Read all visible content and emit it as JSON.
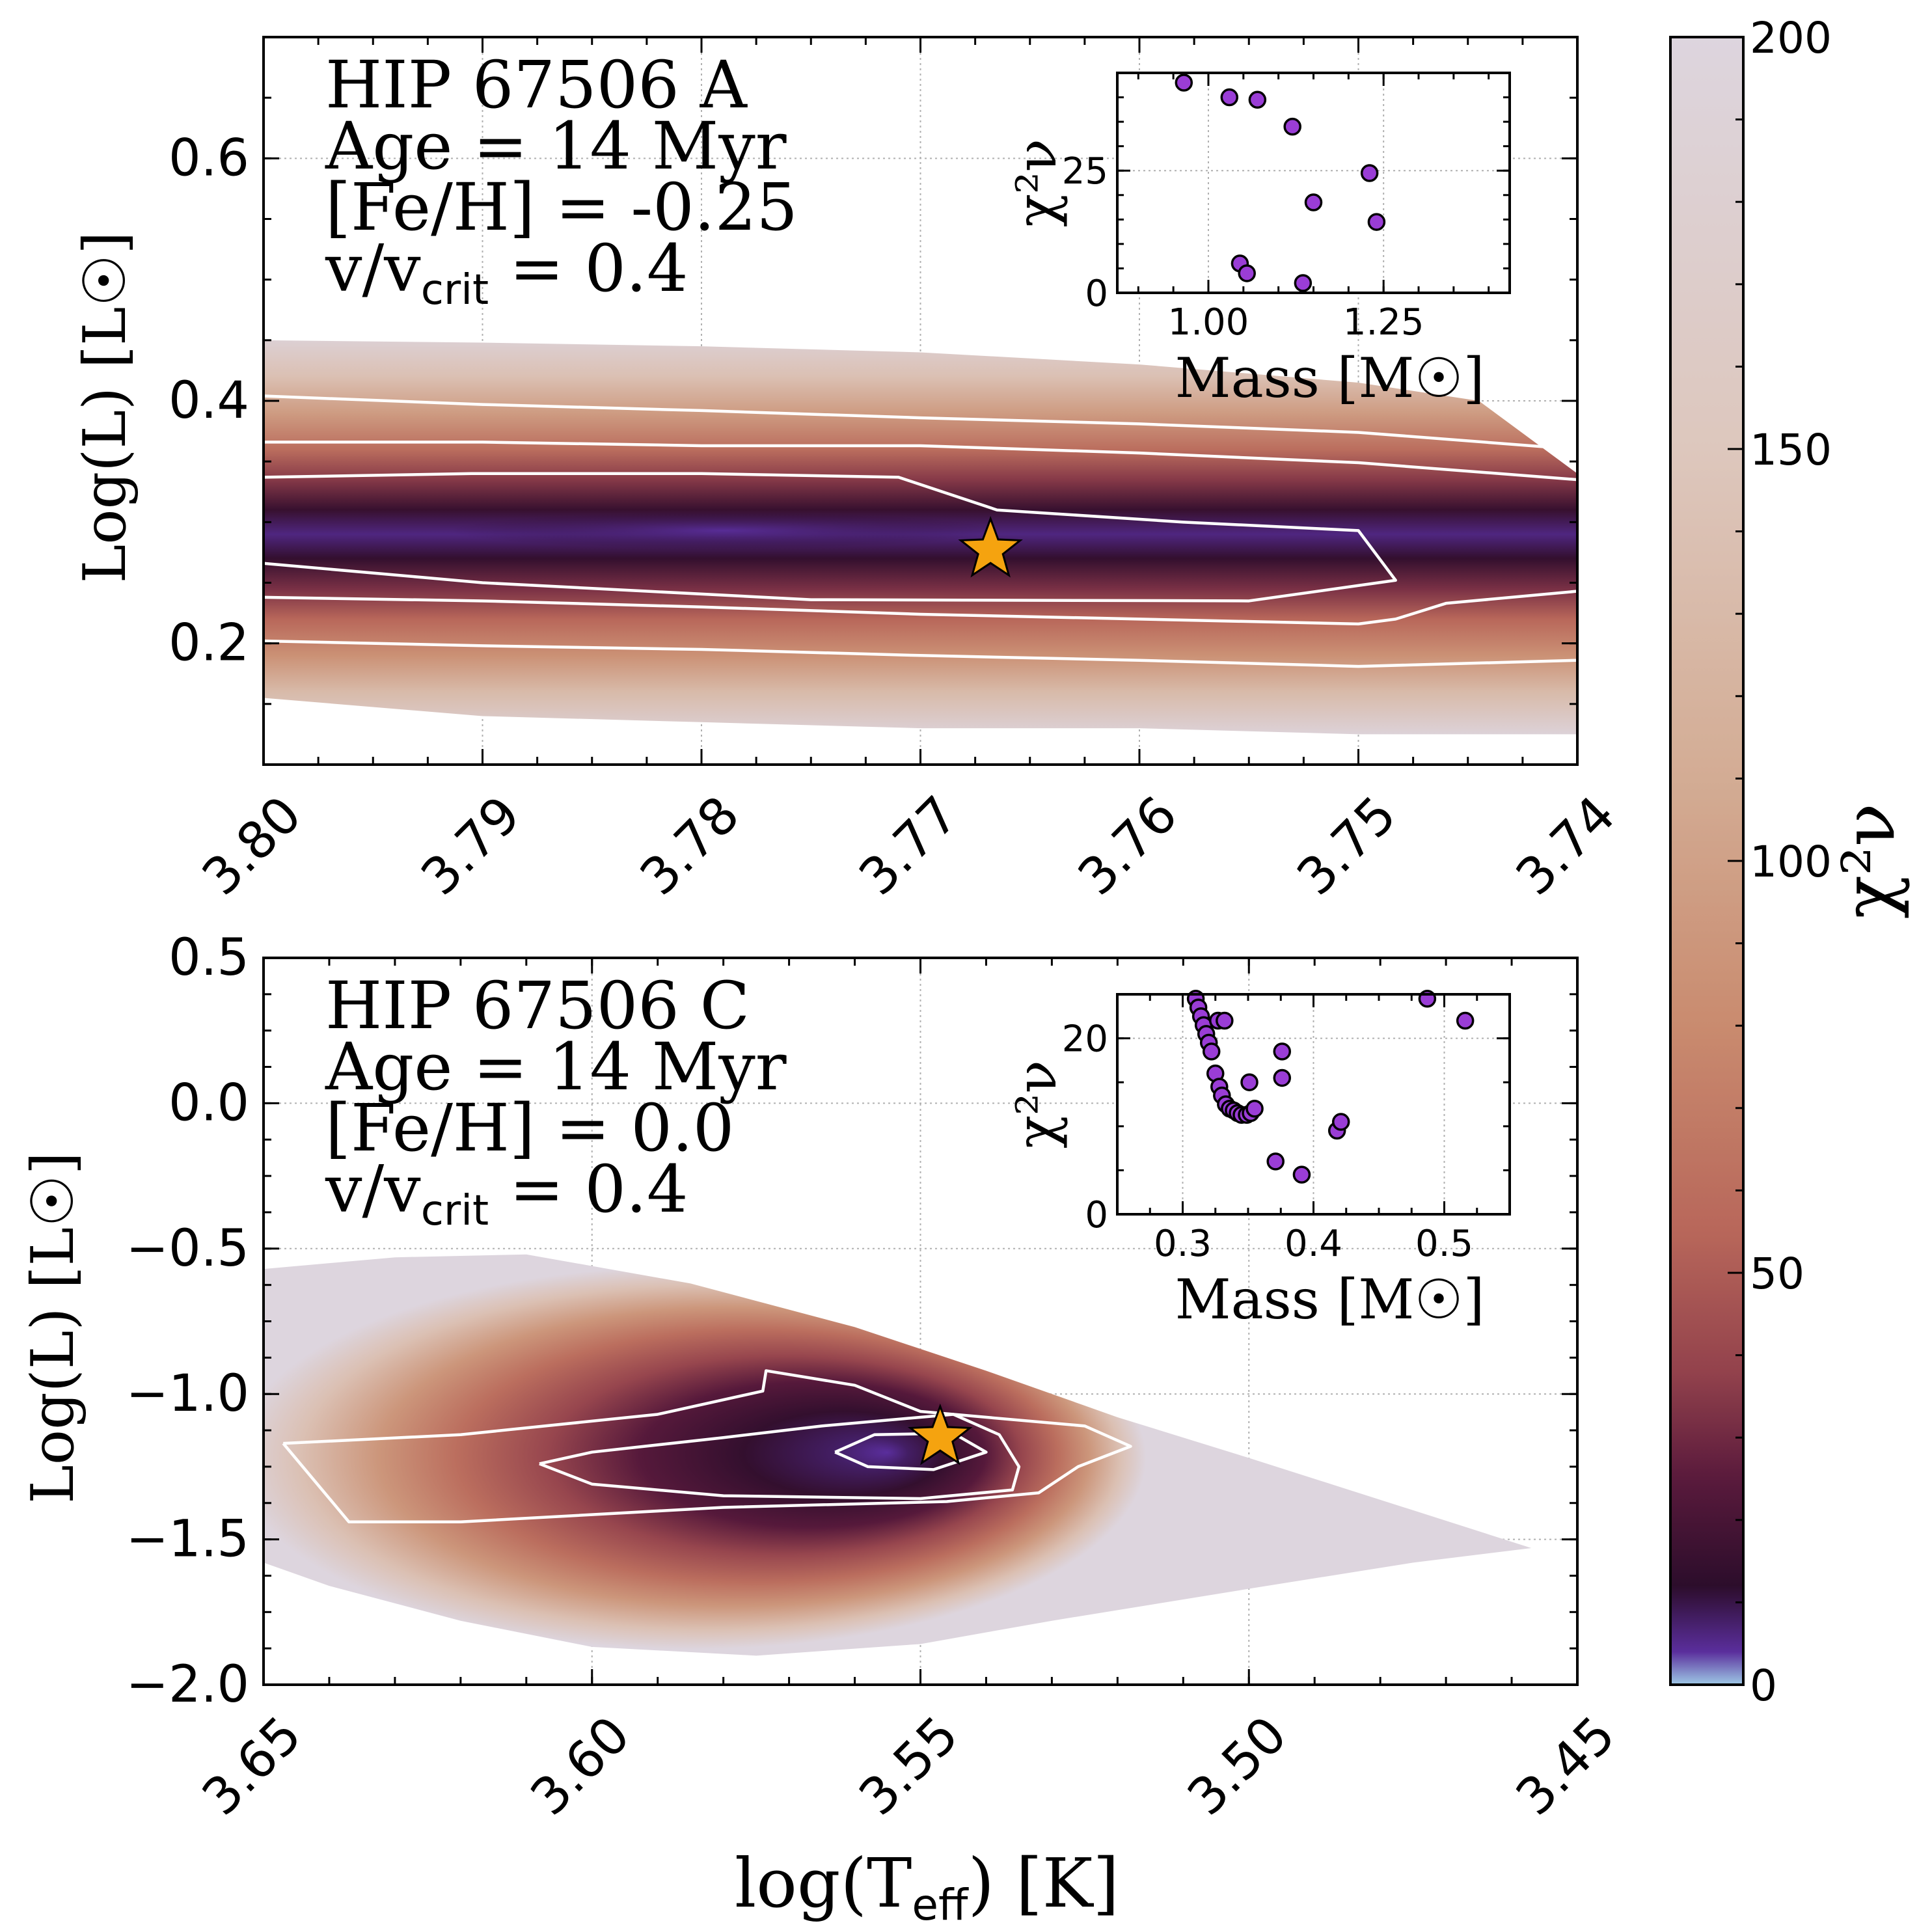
{
  "chart_data": [
    {
      "id": "panel-a",
      "type": "heatmap",
      "title": "",
      "annotations": {
        "name": "HIP 67506 A",
        "age": "Age = 14 Myr",
        "feh": "[Fe/H] = -0.25",
        "rot_prefix": "v/v",
        "rot_sub": "crit",
        "rot_suffix": " = 0.4"
      },
      "xlabel": "",
      "ylabel": "Log(L) [L☉]",
      "xlim": [
        3.8,
        3.74
      ],
      "ylim": [
        0.1,
        0.7
      ],
      "xticks": [
        3.8,
        3.79,
        3.78,
        3.77,
        3.76,
        3.75,
        3.74
      ],
      "xtick_labels": [
        "3.80",
        "3.79",
        "3.78",
        "3.77",
        "3.76",
        "3.75",
        "3.74"
      ],
      "yticks": [
        0.2,
        0.4,
        0.6
      ],
      "ytick_labels": [
        "0.2",
        "0.4",
        "0.6"
      ],
      "envelope": {
        "top": [
          [
            3.8,
            0.45
          ],
          [
            3.79,
            0.448
          ],
          [
            3.78,
            0.445
          ],
          [
            3.77,
            0.44
          ],
          [
            3.76,
            0.43
          ],
          [
            3.75,
            0.415
          ],
          [
            3.7445,
            0.4
          ],
          [
            3.74,
            0.34
          ]
        ],
        "bottom": [
          [
            3.74,
            0.125
          ],
          [
            3.75,
            0.125
          ],
          [
            3.76,
            0.13
          ],
          [
            3.77,
            0.13
          ],
          [
            3.78,
            0.135
          ],
          [
            3.79,
            0.14
          ],
          [
            3.8,
            0.155
          ]
        ]
      },
      "ridge": {
        "x": [
          3.8,
          3.74
        ],
        "y": [
          0.3,
          0.28
        ],
        "width_pos": 0.17
      },
      "contours": [
        [
          [
            3.8,
            0.404
          ],
          [
            3.79,
            0.397
          ],
          [
            3.78,
            0.392
          ],
          [
            3.77,
            0.386
          ],
          [
            3.76,
            0.381
          ],
          [
            3.75,
            0.374
          ],
          [
            3.74,
            0.36
          ]
        ],
        [
          [
            3.8,
            0.366
          ],
          [
            3.79,
            0.366
          ],
          [
            3.78,
            0.363
          ],
          [
            3.77,
            0.363
          ],
          [
            3.76,
            0.357
          ],
          [
            3.75,
            0.349
          ],
          [
            3.74,
            0.335
          ]
        ],
        [
          [
            3.8,
            0.337
          ],
          [
            3.7905,
            0.34
          ],
          [
            3.78,
            0.34
          ],
          [
            3.771,
            0.337
          ],
          [
            3.7665,
            0.31
          ],
          [
            3.758,
            0.3
          ],
          [
            3.75,
            0.293
          ],
          [
            3.7483,
            0.252
          ],
          [
            3.755,
            0.235
          ],
          [
            3.775,
            0.236
          ],
          [
            3.79,
            0.25
          ],
          [
            3.8,
            0.266
          ]
        ],
        [
          [
            3.8,
            0.238
          ],
          [
            3.79,
            0.235
          ],
          [
            3.78,
            0.23
          ],
          [
            3.77,
            0.224
          ],
          [
            3.76,
            0.22
          ],
          [
            3.75,
            0.216
          ],
          [
            3.7483,
            0.22
          ],
          [
            3.746,
            0.233
          ],
          [
            3.74,
            0.243
          ]
        ],
        [
          [
            3.8,
            0.202
          ],
          [
            3.79,
            0.198
          ],
          [
            3.78,
            0.195
          ],
          [
            3.77,
            0.19
          ],
          [
            3.76,
            0.186
          ],
          [
            3.75,
            0.181
          ],
          [
            3.74,
            0.186
          ]
        ]
      ],
      "best_fit": {
        "x": 3.7668,
        "y": 0.277
      },
      "inset": {
        "type": "scatter",
        "xlabel": "Mass [M☉]",
        "ylabel": "χ²ν",
        "xlim": [
          0.87,
          1.43
        ],
        "ylim": [
          0,
          45
        ],
        "xticks": [
          1.0,
          1.25
        ],
        "xtick_labels": [
          "1.00",
          "1.25"
        ],
        "yticks": [
          0,
          25
        ],
        "ytick_labels": [
          "0",
          "25"
        ],
        "x": [
          0.965,
          1.03,
          1.07,
          1.12,
          1.23,
          1.15,
          1.24,
          1.045,
          1.055,
          1.135
        ],
        "y": [
          43,
          40,
          39.5,
          34,
          24.5,
          18.5,
          14.5,
          6,
          4,
          2
        ]
      }
    },
    {
      "id": "panel-c",
      "type": "heatmap",
      "title": "",
      "annotations": {
        "name": "HIP 67506 C",
        "age": "Age = 14 Myr",
        "feh": "[Fe/H] = 0.0",
        "rot_prefix": "v/v",
        "rot_sub": "crit",
        "rot_suffix": " = 0.4"
      },
      "xlabel": "log(T_eff) [K]",
      "xlabel_parts": {
        "pre": "log(T",
        "sub": "eff",
        "post": ") [K]"
      },
      "ylabel": "Log(L) [L☉]",
      "xlim": [
        3.65,
        3.45
      ],
      "ylim": [
        -2.0,
        0.5
      ],
      "xticks": [
        3.65,
        3.6,
        3.55,
        3.5,
        3.45
      ],
      "xtick_labels": [
        "3.65",
        "3.60",
        "3.55",
        "3.50",
        "3.45"
      ],
      "yticks": [
        -2.0,
        -1.5,
        -1.0,
        -0.5,
        0.0,
        0.5
      ],
      "ytick_labels": [
        "−2.0",
        "−1.5",
        "−1.0",
        "−0.5",
        "0.0",
        "0.5"
      ],
      "envelope": [
        [
          3.65,
          -0.57
        ],
        [
          3.63,
          -0.53
        ],
        [
          3.61,
          -0.52
        ],
        [
          3.585,
          -0.62
        ],
        [
          3.56,
          -0.77
        ],
        [
          3.54,
          -0.92
        ],
        [
          3.52,
          -1.08
        ],
        [
          3.5,
          -1.22
        ],
        [
          3.475,
          -1.4
        ],
        [
          3.457,
          -1.53
        ],
        [
          3.475,
          -1.58
        ],
        [
          3.5,
          -1.67
        ],
        [
          3.53,
          -1.78
        ],
        [
          3.55,
          -1.86
        ],
        [
          3.575,
          -1.9
        ],
        [
          3.6,
          -1.87
        ],
        [
          3.62,
          -1.78
        ],
        [
          3.64,
          -1.66
        ],
        [
          3.65,
          -1.58
        ]
      ],
      "ridge": {
        "x": [
          3.6,
          3.53
        ],
        "y": [
          -1.21,
          -1.21
        ]
      },
      "contours": [
        [
          [
            3.647,
            -1.17
          ],
          [
            3.62,
            -1.14
          ],
          [
            3.59,
            -1.07
          ],
          [
            3.574,
            -0.99
          ],
          [
            3.5735,
            -0.92
          ],
          [
            3.56,
            -0.97
          ],
          [
            3.55,
            -1.06
          ],
          [
            3.525,
            -1.11
          ],
          [
            3.518,
            -1.18
          ],
          [
            3.526,
            -1.25
          ],
          [
            3.532,
            -1.34
          ],
          [
            3.546,
            -1.37
          ],
          [
            3.58,
            -1.39
          ],
          [
            3.62,
            -1.44
          ],
          [
            3.637,
            -1.44
          ],
          [
            3.647,
            -1.17
          ]
        ],
        [
          [
            3.608,
            -1.24
          ],
          [
            3.6,
            -1.2
          ],
          [
            3.58,
            -1.15
          ],
          [
            3.565,
            -1.11
          ],
          [
            3.545,
            -1.07
          ],
          [
            3.538,
            -1.14
          ],
          [
            3.535,
            -1.25
          ],
          [
            3.536,
            -1.33
          ],
          [
            3.55,
            -1.36
          ],
          [
            3.58,
            -1.35
          ],
          [
            3.6,
            -1.31
          ],
          [
            3.608,
            -1.24
          ]
        ],
        [
          [
            3.563,
            -1.2
          ],
          [
            3.557,
            -1.14
          ],
          [
            3.545,
            -1.135
          ],
          [
            3.54,
            -1.2
          ],
          [
            3.548,
            -1.26
          ],
          [
            3.558,
            -1.25
          ],
          [
            3.563,
            -1.2
          ]
        ]
      ],
      "best_fit": {
        "x": 3.547,
        "y": -1.15
      },
      "inset": {
        "type": "scatter",
        "xlabel": "Mass [M☉]",
        "ylabel": "χ²ν",
        "xlim": [
          0.25,
          0.55
        ],
        "ylim": [
          0,
          25
        ],
        "xticks": [
          0.3,
          0.4,
          0.5
        ],
        "xtick_labels": [
          "0.3",
          "0.4",
          "0.5"
        ],
        "yticks": [
          0,
          20
        ],
        "ytick_labels": [
          "0",
          "20"
        ],
        "x": [
          0.31,
          0.312,
          0.314,
          0.316,
          0.318,
          0.32,
          0.322,
          0.325,
          0.328,
          0.33,
          0.333,
          0.336,
          0.339,
          0.342,
          0.345,
          0.349,
          0.352,
          0.355,
          0.351,
          0.327,
          0.332,
          0.371,
          0.376,
          0.391,
          0.376,
          0.418,
          0.421,
          0.487,
          0.516
        ],
        "y": [
          24.5,
          23.5,
          22.5,
          21.5,
          20.5,
          19.5,
          18.5,
          16,
          14.5,
          13.5,
          12.5,
          12,
          11.8,
          11.5,
          11.3,
          11.3,
          11.5,
          12,
          15,
          22,
          22,
          6,
          15.5,
          4.5,
          18.5,
          9.5,
          10.5,
          24.5,
          22
        ]
      }
    }
  ],
  "colorbar": {
    "label": "χ²ν",
    "range": [
      0,
      200
    ],
    "ticks": [
      0,
      50,
      100,
      150,
      200
    ],
    "tick_labels": [
      "0",
      "50",
      "100",
      "150",
      "200"
    ],
    "stops": [
      {
        "v": 0,
        "c": "#9ec9e6"
      },
      {
        "v": 4,
        "c": "#5a2e9c"
      },
      {
        "v": 12,
        "c": "#2c0d2b"
      },
      {
        "v": 25,
        "c": "#5a1a3c"
      },
      {
        "v": 38,
        "c": "#93424c"
      },
      {
        "v": 55,
        "c": "#b8675a"
      },
      {
        "v": 80,
        "c": "#c98b6f"
      },
      {
        "v": 110,
        "c": "#d3ac94"
      },
      {
        "v": 150,
        "c": "#ddc7bd"
      },
      {
        "v": 200,
        "c": "#ddd5de"
      }
    ]
  },
  "colors": {
    "star": "#f5a30f",
    "scatter": "#9a3dd6",
    "contour": "#ffffff",
    "grid": "#b0b0b0"
  }
}
